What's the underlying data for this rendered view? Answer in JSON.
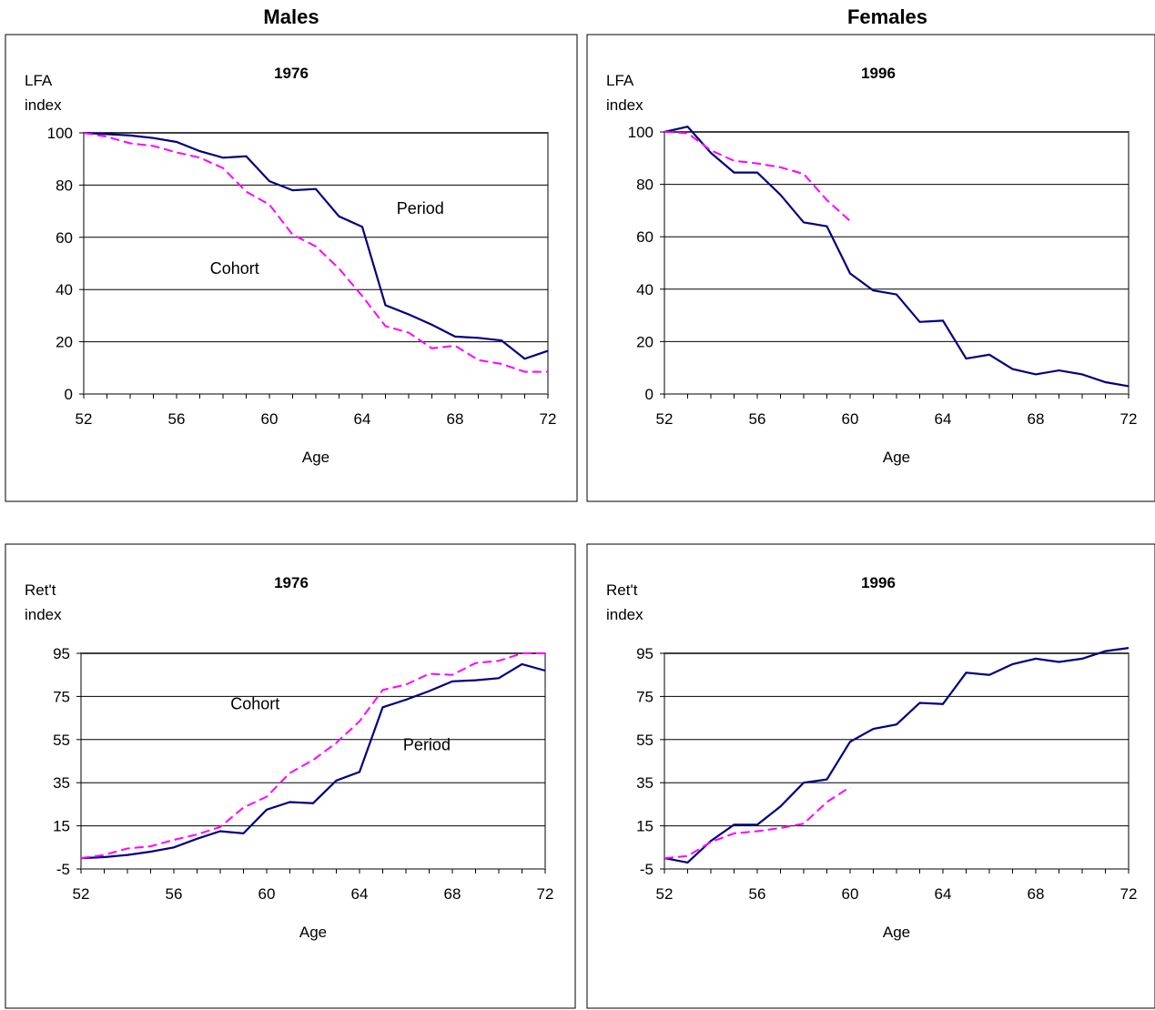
{
  "headers": {
    "left": "Males",
    "right": "Females"
  },
  "colors": {
    "period": "#000080",
    "cohort": "#FF00FF",
    "axis": "#808080",
    "grid": "#000000"
  },
  "chart_data": [
    {
      "type": "line",
      "title": "1976",
      "ylabel_lines": [
        "LFA",
        "index"
      ],
      "xlabel": "Age",
      "xlim": [
        52,
        72
      ],
      "xticks": [
        52,
        56,
        60,
        64,
        68,
        72
      ],
      "ylim": [
        0,
        100
      ],
      "yticks": [
        0,
        20,
        40,
        60,
        80,
        100
      ],
      "annotations": [
        {
          "text": "Period",
          "x": 66.5,
          "y": 71
        },
        {
          "text": "Cohort",
          "x": 58.5,
          "y": 48
        }
      ],
      "series": [
        {
          "style": "period",
          "x": [
            52,
            53,
            54,
            55,
            56,
            57,
            58,
            59,
            60,
            61,
            62,
            63,
            64,
            65,
            66,
            67,
            68,
            69,
            70,
            71,
            72
          ],
          "y": [
            100,
            99.5,
            99,
            98,
            96.5,
            93,
            90.5,
            91,
            81.5,
            78,
            78.5,
            68,
            64,
            34,
            30.5,
            26.5,
            22,
            21.5,
            20.5,
            13.5,
            16.5
          ]
        },
        {
          "style": "cohort",
          "x": [
            52,
            53,
            54,
            55,
            56,
            57,
            58,
            59,
            60,
            61,
            62,
            63,
            64,
            65,
            66,
            67,
            68,
            69,
            70,
            71,
            72
          ],
          "y": [
            100,
            98.5,
            96,
            95,
            92.5,
            90.5,
            86.5,
            77.5,
            72.5,
            61,
            56.5,
            48,
            37.5,
            26,
            23.5,
            17.5,
            18.5,
            13,
            11.5,
            8.5,
            8.5
          ]
        }
      ]
    },
    {
      "type": "line",
      "title": "1996",
      "ylabel_lines": [
        "LFA",
        "index"
      ],
      "xlabel": "Age",
      "xlim": [
        52,
        72
      ],
      "xticks": [
        52,
        56,
        60,
        64,
        68,
        72
      ],
      "ylim": [
        0,
        100
      ],
      "yticks": [
        0,
        20,
        40,
        60,
        80,
        100
      ],
      "annotations": [],
      "series": [
        {
          "style": "period",
          "x": [
            52,
            53,
            54,
            55,
            56,
            57,
            58,
            59,
            60,
            61,
            62,
            63,
            64,
            65,
            66,
            67,
            68,
            69,
            70,
            71,
            72
          ],
          "y": [
            100,
            102,
            92,
            84.5,
            84.5,
            76,
            65.5,
            64,
            46,
            39.5,
            38,
            27.5,
            28,
            13.5,
            15,
            9.5,
            7.5,
            9,
            7.5,
            4.5,
            3
          ]
        },
        {
          "style": "cohort",
          "x": [
            52,
            53,
            54,
            55,
            56,
            57,
            58,
            59,
            60
          ],
          "y": [
            100,
            99.5,
            93,
            89,
            88,
            86.5,
            84,
            74,
            66
          ]
        }
      ]
    },
    {
      "type": "line",
      "title": "1976",
      "ylabel_lines": [
        "Ret't",
        "index"
      ],
      "xlabel": "Age",
      "xlim": [
        52,
        72
      ],
      "xticks": [
        52,
        56,
        60,
        64,
        68,
        72
      ],
      "ylim": [
        -5,
        95
      ],
      "yticks": [
        -5,
        15,
        35,
        55,
        75,
        95
      ],
      "annotations": [
        {
          "text": "Cohort",
          "x": 59.5,
          "y": 71.5
        },
        {
          "text": "Period",
          "x": 66.9,
          "y": 52.5
        }
      ],
      "series": [
        {
          "style": "period",
          "x": [
            52,
            53,
            54,
            55,
            56,
            57,
            58,
            59,
            60,
            61,
            62,
            63,
            64,
            65,
            66,
            67,
            68,
            69,
            70,
            71,
            72
          ],
          "y": [
            0,
            0.5,
            1.5,
            3,
            5,
            9,
            12.5,
            11.5,
            22.5,
            26,
            25.5,
            36,
            40,
            70,
            73.5,
            77.5,
            82,
            82.5,
            83.5,
            90,
            87
          ]
        },
        {
          "style": "cohort",
          "x": [
            52,
            53,
            54,
            55,
            56,
            57,
            58,
            59,
            60,
            61,
            62,
            63,
            64,
            65,
            66,
            67,
            68,
            69,
            70,
            71,
            72
          ],
          "y": [
            0,
            1.5,
            4.5,
            5.5,
            8.5,
            11,
            14.5,
            23.5,
            28.5,
            39.5,
            45.5,
            53.5,
            63.5,
            78,
            80.5,
            85.5,
            85,
            90.5,
            91.5,
            95,
            95
          ]
        }
      ]
    },
    {
      "type": "line",
      "title": "1996",
      "ylabel_lines": [
        "Ret't",
        "index"
      ],
      "xlabel": "Age",
      "xlim": [
        52,
        72
      ],
      "xticks": [
        52,
        56,
        60,
        64,
        68,
        72
      ],
      "ylim": [
        -5,
        95
      ],
      "yticks": [
        -5,
        15,
        35,
        55,
        75,
        95
      ],
      "annotations": [],
      "series": [
        {
          "style": "period",
          "x": [
            52,
            53,
            54,
            55,
            56,
            57,
            58,
            59,
            60,
            61,
            62,
            63,
            64,
            65,
            66,
            67,
            68,
            69,
            70,
            71,
            72
          ],
          "y": [
            0,
            -2,
            8,
            15.5,
            15.5,
            24,
            35,
            36.5,
            54,
            60,
            62,
            72,
            71.5,
            86,
            85,
            90,
            92.5,
            91,
            92.5,
            96,
            97.5
          ]
        },
        {
          "style": "cohort",
          "x": [
            52,
            53,
            54,
            55,
            56,
            57,
            58,
            59,
            60
          ],
          "y": [
            0,
            1,
            7.5,
            11.5,
            12.5,
            14,
            16,
            26,
            33
          ]
        }
      ]
    }
  ]
}
